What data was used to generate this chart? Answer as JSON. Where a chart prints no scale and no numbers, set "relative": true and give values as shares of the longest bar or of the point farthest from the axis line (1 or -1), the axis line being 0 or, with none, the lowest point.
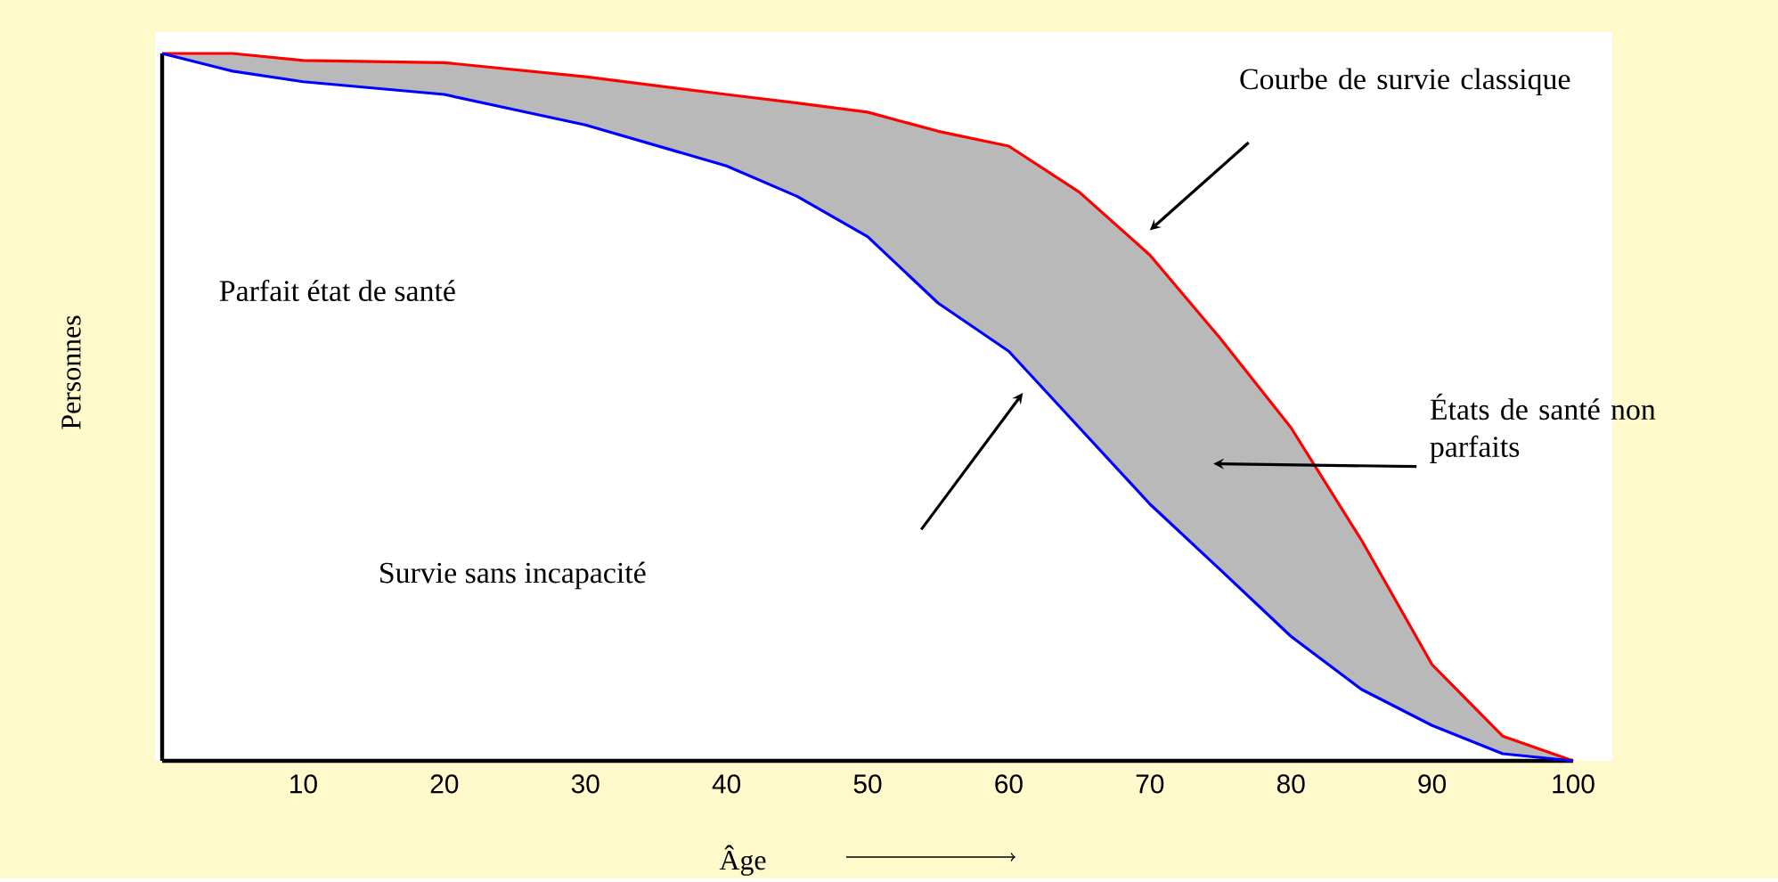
{
  "chart_data": {
    "type": "line",
    "relative": true,
    "xlabel": "Âge",
    "ylabel": "Personnes",
    "xlim": [
      0,
      100
    ],
    "xticks": [
      10,
      20,
      30,
      40,
      50,
      60,
      70,
      80,
      90,
      100
    ],
    "x": [
      0,
      5,
      10,
      20,
      30,
      40,
      45,
      50,
      55,
      60,
      65,
      70,
      75,
      80,
      85,
      90,
      95,
      100
    ],
    "series": [
      {
        "color": "#ff0000",
        "values": [
          1.0,
          1.0,
          0.99,
          0.987,
          0.967,
          0.942,
          0.93,
          0.917,
          0.89,
          0.869,
          0.804,
          0.715,
          0.597,
          0.471,
          0.312,
          0.136,
          0.035,
          0.0
        ],
        "lower": [
          1.0,
          0.975,
          0.96,
          0.942,
          0.899,
          0.841,
          0.798,
          0.741,
          0.647,
          0.579,
          0.471,
          0.363,
          0.27,
          0.176,
          0.101,
          0.05,
          0.01,
          0.0
        ],
        "upper": [
          1.0,
          1.0,
          0.99,
          0.987,
          0.967,
          0.942,
          0.93,
          0.917,
          0.89,
          0.869,
          0.804,
          0.715,
          0.597,
          0.471,
          0.312,
          0.136,
          0.035,
          0.0
        ]
      },
      {
        "color": "#0000ff",
        "values": [
          1.0,
          0.975,
          0.96,
          0.942,
          0.899,
          0.841,
          0.798,
          0.741,
          0.647,
          0.579,
          0.471,
          0.363,
          0.27,
          0.176,
          0.101,
          0.05,
          0.01,
          0.0
        ]
      }
    ],
    "annotations": [
      "Parfait état de santé",
      "Survie sans incapacité",
      "Courbe de survie classique",
      "États de santé non parfaits"
    ]
  }
}
